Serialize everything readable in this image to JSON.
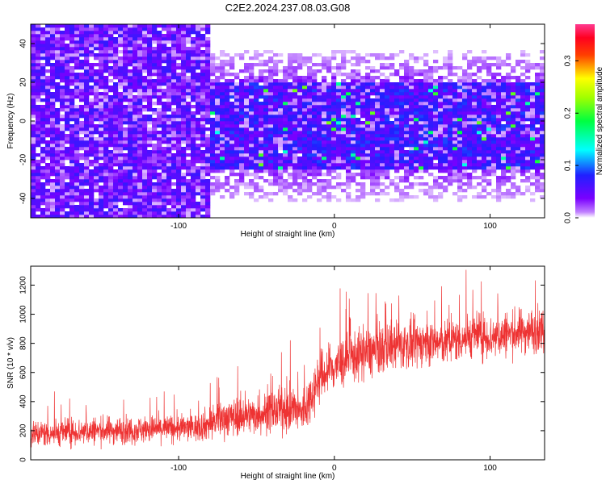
{
  "title": "C2E2.2024.237.08.03.G08",
  "colors": {
    "snr_line": "#ee3333",
    "spectrum_low": "#7a00ff",
    "spectrum_mid": "#0033ff",
    "spectrum_high": "#ff0000"
  },
  "chart_data": [
    {
      "type": "heatmap",
      "title": "C2E2.2024.237.08.03.G08",
      "xlabel": "Height of straight line (km)",
      "ylabel": "Frequency (Hz)",
      "xlim": [
        -195,
        135
      ],
      "ylim": [
        -50,
        50
      ],
      "x_ticks": [
        -100,
        0,
        100
      ],
      "y_ticks": [
        -40,
        -20,
        0,
        20,
        40
      ],
      "grid": false,
      "colorbar": {
        "label": "Normalized spectral amplitude",
        "range": [
          0.0,
          0.37
        ],
        "ticks": [
          0.0,
          0.1,
          0.2,
          0.3
        ],
        "colormap": "rainbow (violet-blue-cyan-green-yellow-red-magenta)"
      },
      "description_points": {
        "broadband_region_x": [
          -195,
          -80
        ],
        "narrowband_region_x": [
          -80,
          135
        ],
        "signal_band_hz": [
          -25,
          20
        ],
        "typical_amplitude": 0.05,
        "peak_amplitude": 0.22
      }
    },
    {
      "type": "line",
      "xlabel": "Height of straight line (km)",
      "ylabel": "SNR (10 * v/v)",
      "xlim": [
        -195,
        135
      ],
      "ylim": [
        0,
        1330
      ],
      "x_ticks": [
        -100,
        0,
        100
      ],
      "y_ticks": [
        0,
        200,
        400,
        600,
        800,
        1000,
        1200
      ],
      "grid": false,
      "series": [
        {
          "x": [
            -195,
            -170,
            -150,
            -130,
            -110,
            -90,
            -80,
            -70,
            -60,
            -50,
            -40,
            -30,
            -20,
            -10,
            0,
            10,
            20,
            30,
            40,
            50,
            60,
            70,
            80,
            90,
            100,
            110,
            120,
            135
          ],
          "values": [
            180,
            190,
            200,
            205,
            215,
            220,
            250,
            290,
            300,
            310,
            330,
            350,
            320,
            560,
            640,
            700,
            730,
            760,
            790,
            790,
            810,
            800,
            830,
            860,
            840,
            860,
            880,
            900
          ],
          "spread": [
            80,
            80,
            80,
            80,
            80,
            80,
            100,
            110,
            110,
            110,
            120,
            130,
            140,
            150,
            150,
            150,
            150,
            150,
            140,
            140,
            130,
            130,
            130,
            130,
            130,
            130,
            130,
            130
          ]
        }
      ]
    }
  ]
}
